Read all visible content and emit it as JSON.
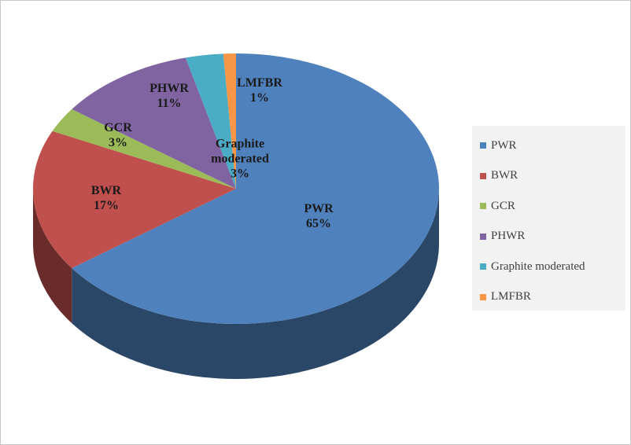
{
  "chart_data": {
    "type": "pie",
    "categories": [
      "PWR",
      "BWR",
      "GCR",
      "PHWR",
      "Graphite moderated",
      "LMFBR"
    ],
    "values": [
      65,
      17,
      3,
      11,
      3,
      1
    ],
    "value_labels": [
      "65%",
      "17%",
      "3%",
      "11%",
      "3%",
      "1%"
    ],
    "colors": [
      "#4f81bd",
      "#c0504d",
      "#9bbb59",
      "#8064a2",
      "#4bacc6",
      "#f79646"
    ],
    "legend": "right"
  }
}
